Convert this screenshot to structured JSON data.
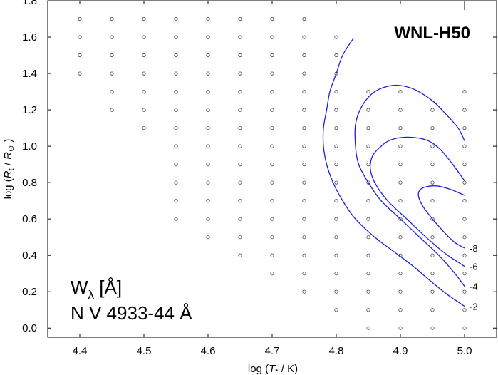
{
  "chart_data": {
    "type": "line",
    "model_name": "WNL-H50",
    "xlabel": {
      "prefix": "log (",
      "sym": "T",
      "sub": "*",
      "suffix": " / K)"
    },
    "ylabel": {
      "prefix": "log (",
      "sym": "R",
      "sub": "t",
      "mid": " / ",
      "sym2": "R",
      "sub2": "⊙",
      "suffix": " )"
    },
    "xlim": [
      4.35,
      5.05
    ],
    "ylim": [
      -0.05,
      1.8
    ],
    "xticks": [
      "4.4",
      "4.5",
      "4.6",
      "4.7",
      "4.8",
      "4.9",
      "5.0"
    ],
    "yticks": [
      "0.0",
      "0.2",
      "0.4",
      "0.6",
      "0.8",
      "1.0",
      "1.2",
      "1.4",
      "1.6",
      "1.8"
    ],
    "annotation": {
      "line1_text": "W",
      "line1_sub": "λ",
      "line1_unit": " [Å]",
      "line2": "N V 4933-44 Å"
    },
    "grid_models": [
      {
        "x": 4.4,
        "y_min": 1.4,
        "y_max": 1.7
      },
      {
        "x": 4.45,
        "y_min": 1.2,
        "y_max": 1.7
      },
      {
        "x": 4.5,
        "y_min": 1.1,
        "y_max": 1.7
      },
      {
        "x": 4.55,
        "y_min": 0.6,
        "y_max": 1.7
      },
      {
        "x": 4.6,
        "y_min": 0.5,
        "y_max": 1.7
      },
      {
        "x": 4.65,
        "y_min": 0.4,
        "y_max": 1.7
      },
      {
        "x": 4.7,
        "y_min": 0.3,
        "y_max": 1.7
      },
      {
        "x": 4.75,
        "y_min": 0.2,
        "y_max": 1.7
      },
      {
        "x": 4.8,
        "y_min": 0.1,
        "y_max": 1.6
      },
      {
        "x": 4.85,
        "y_min": 0.0,
        "y_max": 1.3
      },
      {
        "x": 4.9,
        "y_min": 0.0,
        "y_max": 1.3
      },
      {
        "x": 4.95,
        "y_min": 0.0,
        "y_max": 1.2
      },
      {
        "x": 5.0,
        "y_min": 0.0,
        "y_max": 1.3
      }
    ],
    "grid_step": 0.1,
    "series": [
      {
        "label": "-2",
        "color": "#1f1fdc",
        "points": [
          [
            4.827,
            1.595
          ],
          [
            4.81,
            1.5
          ],
          [
            4.8,
            1.4
          ],
          [
            4.79,
            1.3
          ],
          [
            4.785,
            1.2
          ],
          [
            4.78,
            1.1
          ],
          [
            4.78,
            1.0
          ],
          [
            4.785,
            0.9
          ],
          [
            4.795,
            0.8
          ],
          [
            4.81,
            0.7
          ],
          [
            4.83,
            0.6
          ],
          [
            4.86,
            0.5
          ],
          [
            4.89,
            0.42
          ],
          [
            4.92,
            0.34
          ],
          [
            4.95,
            0.25
          ],
          [
            4.975,
            0.18
          ],
          [
            5.0,
            0.12
          ]
        ]
      },
      {
        "label": "-4",
        "color": "#1f1fdc",
        "points": [
          [
            5.0,
            1.03
          ],
          [
            4.99,
            1.1
          ],
          [
            4.97,
            1.18
          ],
          [
            4.95,
            1.25
          ],
          [
            4.92,
            1.315
          ],
          [
            4.89,
            1.335
          ],
          [
            4.86,
            1.3
          ],
          [
            4.84,
            1.22
          ],
          [
            4.83,
            1.12
          ],
          [
            4.83,
            1.0
          ],
          [
            4.835,
            0.9
          ],
          [
            4.85,
            0.8
          ],
          [
            4.87,
            0.7
          ],
          [
            4.9,
            0.6
          ],
          [
            4.93,
            0.5
          ],
          [
            4.96,
            0.4
          ],
          [
            4.985,
            0.3
          ],
          [
            5.0,
            0.23
          ]
        ]
      },
      {
        "label": "-6",
        "color": "#1f1fdc",
        "points": [
          [
            5.0,
            0.81
          ],
          [
            4.99,
            0.86
          ],
          [
            4.975,
            0.93
          ],
          [
            4.96,
            0.99
          ],
          [
            4.94,
            1.035
          ],
          [
            4.91,
            1.05
          ],
          [
            4.885,
            1.035
          ],
          [
            4.87,
            1.0
          ],
          [
            4.857,
            0.95
          ],
          [
            4.853,
            0.88
          ],
          [
            4.86,
            0.8
          ],
          [
            4.88,
            0.7
          ],
          [
            4.91,
            0.6
          ],
          [
            4.94,
            0.5
          ],
          [
            4.97,
            0.41
          ],
          [
            5.0,
            0.34
          ]
        ]
      },
      {
        "label": "-8",
        "color": "#1f1fdc",
        "points": [
          [
            5.0,
            0.73
          ],
          [
            4.98,
            0.76
          ],
          [
            4.96,
            0.78
          ],
          [
            4.945,
            0.78
          ],
          [
            4.932,
            0.765
          ],
          [
            4.928,
            0.73
          ],
          [
            4.935,
            0.67
          ],
          [
            4.95,
            0.6
          ],
          [
            4.97,
            0.52
          ],
          [
            4.985,
            0.47
          ],
          [
            5.0,
            0.44
          ]
        ]
      }
    ]
  }
}
